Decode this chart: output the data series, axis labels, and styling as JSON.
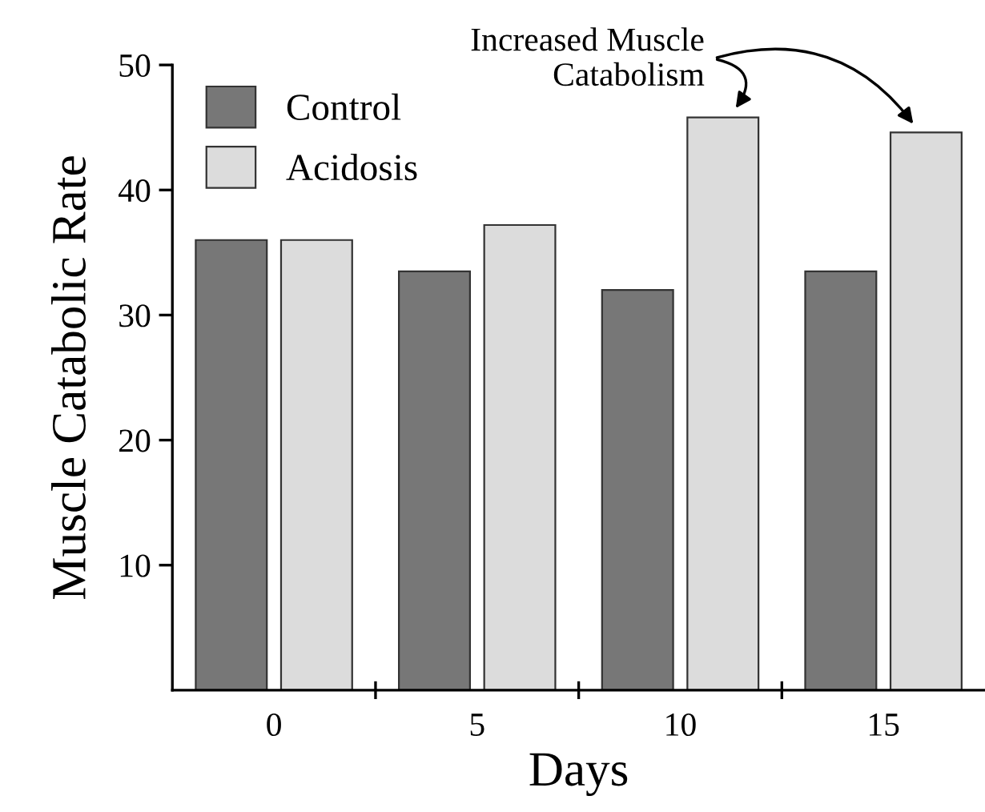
{
  "chart_data": {
    "type": "bar",
    "xlabel": "Days",
    "ylabel": "Muscle Catabolic Rate",
    "categories": [
      "0",
      "5",
      "10",
      "15"
    ],
    "series": [
      {
        "name": "Control",
        "color": "#777777",
        "values": [
          36,
          33.5,
          32,
          33.5
        ]
      },
      {
        "name": "Acidosis",
        "color": "#dcdcdc",
        "values": [
          36,
          37.2,
          45.8,
          44.6
        ]
      }
    ],
    "ylim": [
      0,
      50
    ],
    "yticks": [
      10,
      20,
      30,
      40,
      50
    ],
    "legend": "top left",
    "grid": false,
    "annotations": [
      "Increased Muscle\nCatabolism"
    ]
  }
}
